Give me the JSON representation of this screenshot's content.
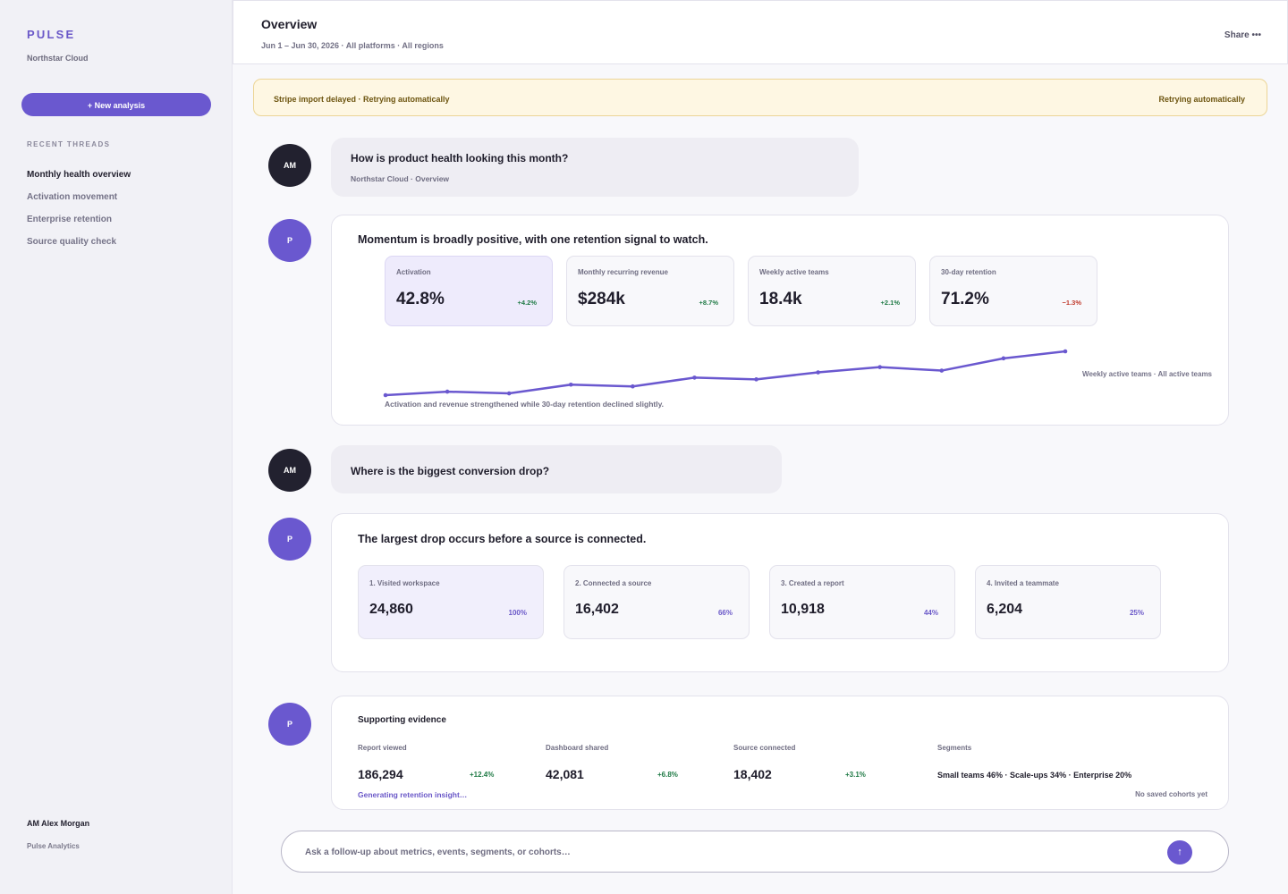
{
  "sidebar": {
    "brand": "PULSE",
    "org": "Northstar Cloud",
    "new_analysis": "+ New analysis",
    "recent_label": "RECENT THREADS",
    "threads": [
      "Monthly health overview",
      "Activation movement",
      "Enterprise retention",
      "Source quality check"
    ],
    "user_name": "AM Alex Morgan",
    "user_team": "Pulse Analytics"
  },
  "header": {
    "title": "Overview",
    "subtitle": "Jun 1 – Jun 30, 2026 · All platforms · All regions",
    "share": "Share •••"
  },
  "banner": {
    "text": "Stripe import delayed · Retrying automatically",
    "right": "Retrying automatically"
  },
  "avatars": {
    "user": "AM",
    "bot": "P"
  },
  "q1": {
    "question": "How is product health looking this month?",
    "meta": "Northstar Cloud · Overview"
  },
  "a1": {
    "title": "Momentum is broadly positive, with one retention signal to watch.",
    "kpis": [
      {
        "label": "Activation",
        "value": "42.8%",
        "delta": "+4.2%"
      },
      {
        "label": "Monthly recurring revenue",
        "value": "$284k",
        "delta": "+8.7%"
      },
      {
        "label": "Weekly active teams",
        "value": "18.4k",
        "delta": "+2.1%"
      },
      {
        "label": "30-day retention",
        "value": "71.2%",
        "delta": "−1.3%"
      }
    ],
    "legend": "Weekly active teams · All active teams",
    "caption": "Activation and revenue strengthened while 30-day retention declined slightly."
  },
  "chart_data": {
    "type": "line",
    "series": [
      {
        "values": [
          16.9,
          17.1,
          17.0,
          17.5,
          17.4,
          17.9,
          17.8,
          18.2,
          18.5,
          18.3,
          19.0,
          19.4
        ]
      }
    ],
    "legend": "Weekly active teams · All active teams",
    "color": "#6a58cf",
    "grid": false
  },
  "q2": {
    "question": "Where is the biggest conversion drop?"
  },
  "a2": {
    "title": "The largest drop occurs before a source is connected.",
    "steps": [
      {
        "label": "1. Visited workspace",
        "value": "24,860",
        "pct": "100%"
      },
      {
        "label": "2. Connected a source",
        "value": "16,402",
        "pct": "66%"
      },
      {
        "label": "3. Created a report",
        "value": "10,918",
        "pct": "44%"
      },
      {
        "label": "4. Invited a teammate",
        "value": "6,204",
        "pct": "25%"
      }
    ]
  },
  "a3": {
    "title": "Supporting evidence",
    "metrics": [
      {
        "label": "Report viewed",
        "value": "186,294",
        "delta": "+12.4%"
      },
      {
        "label": "Dashboard shared",
        "value": "42,081",
        "delta": "+6.8%"
      },
      {
        "label": "Source connected",
        "value": "18,402",
        "delta": "+3.1%"
      }
    ],
    "segments_label": "Segments",
    "segments": "Small teams 46% · Scale-ups 34% · Enterprise 20%",
    "generating": "Generating retention insight…",
    "no_cohorts": "No saved cohorts yet"
  },
  "composer": {
    "placeholder": "Ask a follow-up about metrics, events, segments, or cohorts…",
    "send": "↑"
  },
  "colors": {
    "accent": "#6a58cf",
    "positive": "#1f7a45",
    "negative": "#c0392b",
    "warning_bg": "#fef7e3"
  }
}
